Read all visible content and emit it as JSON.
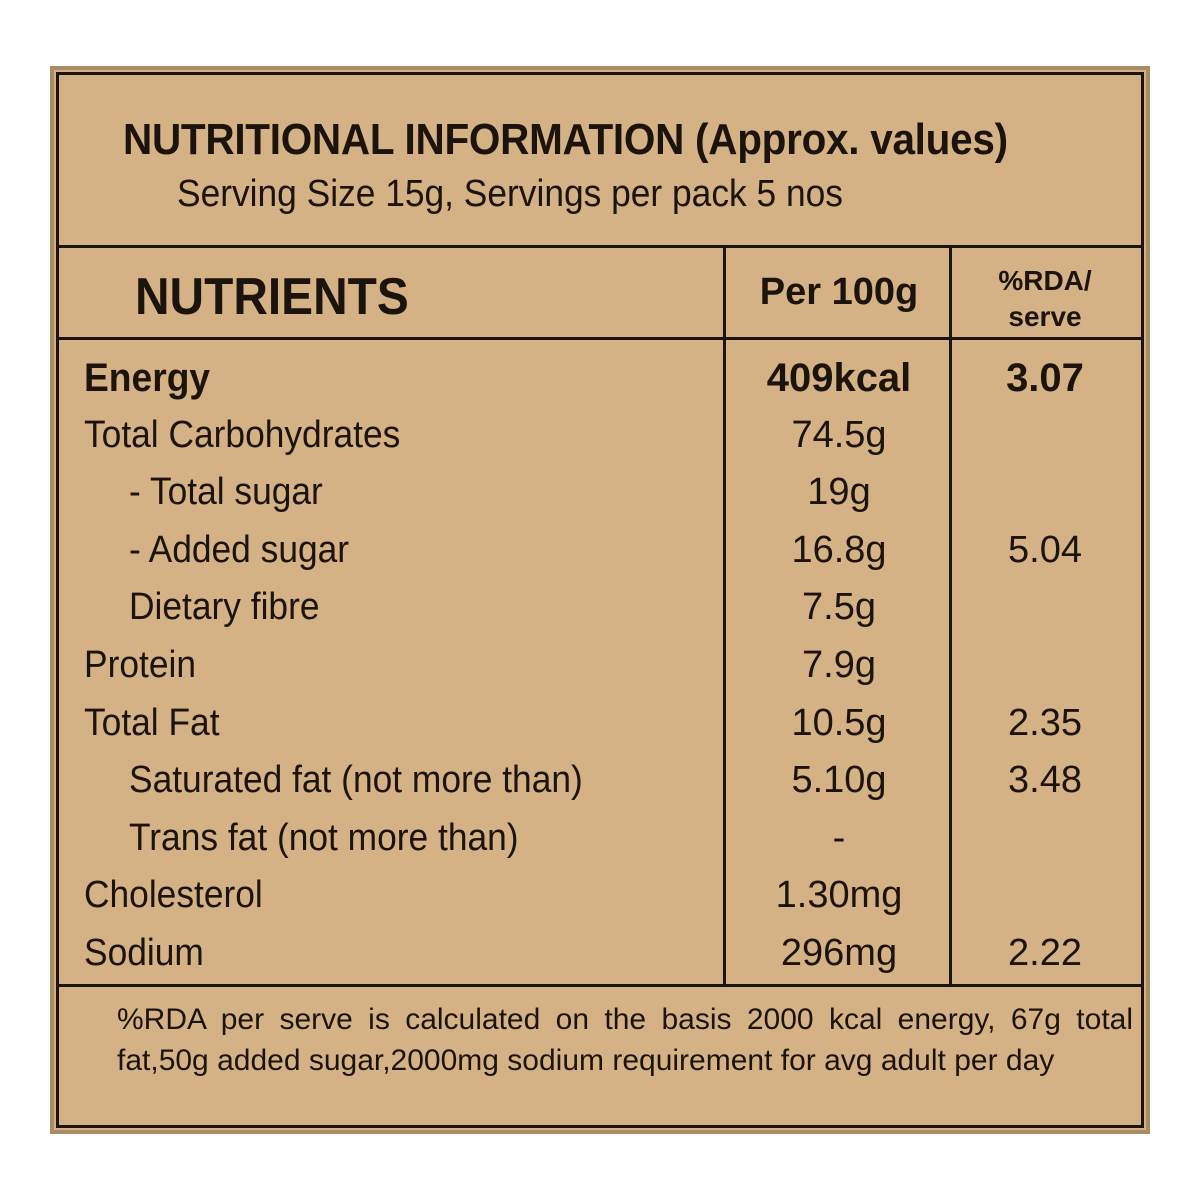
{
  "header": {
    "title": "NUTRITIONAL INFORMATION (Approx. values)",
    "serving": "Serving Size 15g, Servings per pack 5 nos"
  },
  "columns": {
    "nutrients": "NUTRIENTS",
    "per100g": "Per 100g",
    "rda_line1": "%RDA/",
    "rda_line2": "serve"
  },
  "rows": [
    {
      "name": "Energy",
      "per100g": "409kcal",
      "rda": "3.07",
      "bold": true,
      "indent": 0
    },
    {
      "name": "Total Carbohydrates",
      "per100g": "74.5g",
      "rda": "",
      "bold": false,
      "indent": 0
    },
    {
      "name": "- Total sugar",
      "per100g": "19g",
      "rda": "",
      "bold": false,
      "indent": 1
    },
    {
      "name": "- Added sugar",
      "per100g": "16.8g",
      "rda": "5.04",
      "bold": false,
      "indent": 1
    },
    {
      "name": "Dietary fibre",
      "per100g": "7.5g",
      "rda": "",
      "bold": false,
      "indent": 1
    },
    {
      "name": "Protein",
      "per100g": "7.9g",
      "rda": "",
      "bold": false,
      "indent": 0
    },
    {
      "name": "Total Fat",
      "per100g": "10.5g",
      "rda": "2.35",
      "bold": false,
      "indent": 0
    },
    {
      "name": "Saturated fat (not more than)",
      "per100g": "5.10g",
      "rda": "3.48",
      "bold": false,
      "indent": 1
    },
    {
      "name": "Trans fat (not more than)",
      "per100g": "-",
      "rda": "",
      "bold": false,
      "indent": 1
    },
    {
      "name": "Cholesterol",
      "per100g": "1.30mg",
      "rda": "",
      "bold": false,
      "indent": 0
    },
    {
      "name": "Sodium",
      "per100g": "296mg",
      "rda": "2.22",
      "bold": false,
      "indent": 0
    }
  ],
  "footnote": "%RDA per serve is calculated on the basis 2000 kcal energy, 67g total fat,50g added sugar,2000mg sodium requirement for avg adult per day",
  "colors": {
    "panel": "#d4b285",
    "ink": "#1c140c",
    "outer_border": "#a98d63"
  }
}
